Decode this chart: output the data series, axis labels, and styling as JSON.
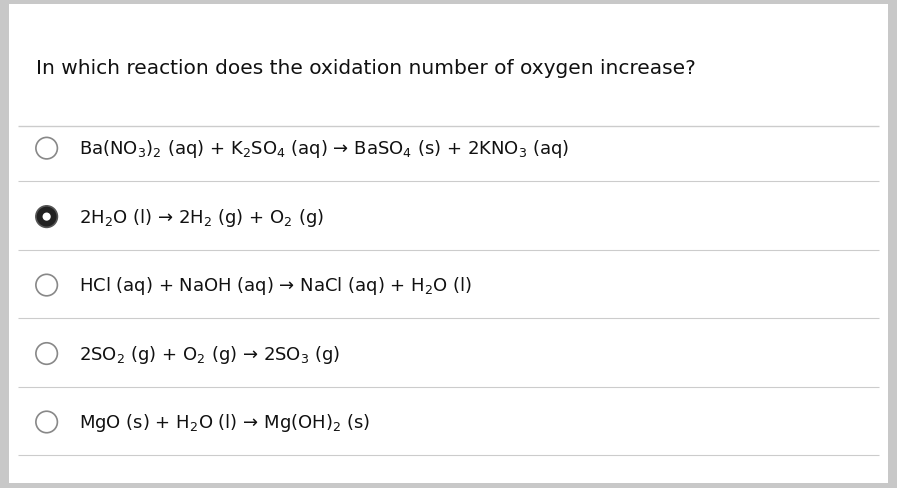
{
  "title": "In which reaction does the oxidation number of oxygen increase?",
  "background_color": "#c8c8c8",
  "panel_color": "#ffffff",
  "options": [
    {
      "label": "Ba(NO$_3$)$_2$ (aq) + K$_2$SO$_4$ (aq) → BaSO$_4$ (s) + 2KNO$_3$ (aq)",
      "selected": false
    },
    {
      "label": "2H$_2$O (l) → 2H$_2$ (g) + O$_2$ (g)",
      "selected": true
    },
    {
      "label": "HCl (aq) + NaOH (aq) → NaCl (aq) + H$_2$O (l)",
      "selected": false
    },
    {
      "label": "2SO$_2$ (g) + O$_2$ (g) → 2SO$_3$ (g)",
      "selected": false
    },
    {
      "label": "MgO (s) + H$_2$O (l) → Mg(OH)$_2$ (s)",
      "selected": false
    }
  ],
  "title_fontsize": 14.5,
  "option_fontsize": 13,
  "selected_fill_color": "#222222",
  "line_color": "#cccccc",
  "text_color": "#111111",
  "circle_edge_color": "#888888"
}
